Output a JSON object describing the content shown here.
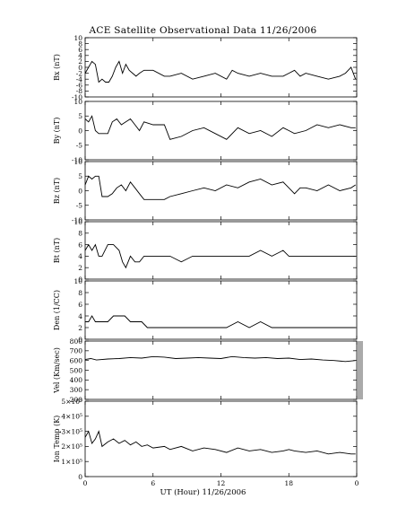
{
  "title": "ACE Satellite Observational Data   11/26/2006",
  "xlabel": "UT (Hour)   11/26/2006",
  "colors": {
    "trace": "#000000",
    "gap_bar": "#aaaaaa",
    "axis": "#000000"
  },
  "chart_data": [
    {
      "type": "line",
      "ylabel": "Bx (nT)",
      "ylim": [
        -10,
        10
      ],
      "yticks": [
        "-10",
        "-8",
        "-6",
        "-4",
        "-2",
        "0",
        "2",
        "4",
        "6",
        "8",
        "10"
      ],
      "xticks": [
        "0",
        "6",
        "12",
        "18",
        "0"
      ],
      "xlim": [
        0,
        24
      ],
      "series": [
        {
          "x": [
            0,
            0.3,
            0.6,
            0.9,
            1.2,
            1.5,
            1.8,
            2.1,
            2.4,
            2.7,
            3.0,
            3.3,
            3.6,
            3.9,
            4.2,
            4.5,
            4.8,
            5.2,
            6.0,
            7.0,
            7.5,
            8.5,
            9.5,
            10.5,
            11.5,
            12.5,
            13.0,
            13.5,
            14.5,
            15.5,
            16.5,
            17.5,
            18.0,
            18.5,
            19.0,
            19.5,
            20.5,
            21.5,
            22.5,
            23.0,
            23.5,
            23.9
          ],
          "y": [
            -2,
            0,
            2,
            1,
            -5,
            -4,
            -5,
            -5,
            -3,
            0,
            2,
            -2,
            1,
            -1,
            -2,
            -3,
            -2,
            -1,
            -1,
            -3,
            -3,
            -2,
            -4,
            -3,
            -2,
            -4,
            -1,
            -2,
            -3,
            -2,
            -3,
            -3,
            -2,
            -1,
            -3,
            -2,
            -3,
            -4,
            -3,
            -2,
            0,
            -4
          ]
        }
      ]
    },
    {
      "type": "line",
      "ylabel": "By (nT)",
      "ylim": [
        -10,
        10
      ],
      "yticks": [
        "-10",
        "-5",
        "0",
        "5",
        "10"
      ],
      "xticks": [
        "0",
        "6",
        "12",
        "18",
        "0"
      ],
      "xlim": [
        0,
        24
      ],
      "series": [
        {
          "x": [
            0,
            0.3,
            0.6,
            0.9,
            1.2,
            1.5,
            2.0,
            2.4,
            2.8,
            3.2,
            3.6,
            4.0,
            4.4,
            4.8,
            5.2,
            6.0,
            7.0,
            7.5,
            8.5,
            9.5,
            10.5,
            11.5,
            12.5,
            13.5,
            14.5,
            15.5,
            16.5,
            17.5,
            18.0,
            18.5,
            19.5,
            20.5,
            21.5,
            22.5,
            23.5,
            23.9
          ],
          "y": [
            4,
            3,
            5,
            0,
            -1,
            -1,
            -1,
            3,
            4,
            2,
            3,
            4,
            2,
            0,
            3,
            2,
            2,
            -3,
            -2,
            0,
            1,
            -1,
            -3,
            1,
            -1,
            0,
            -2,
            1,
            0,
            -1,
            0,
            2,
            1,
            2,
            1,
            1
          ]
        }
      ]
    },
    {
      "type": "line",
      "ylabel": "Bz (nT)",
      "ylim": [
        -10,
        10
      ],
      "yticks": [
        "-10",
        "-5",
        "0",
        "5",
        "10"
      ],
      "xticks": [
        "0",
        "6",
        "12",
        "18",
        "0"
      ],
      "xlim": [
        0,
        24
      ],
      "series": [
        {
          "x": [
            0,
            0.3,
            0.6,
            0.9,
            1.2,
            1.5,
            2.0,
            2.4,
            2.8,
            3.2,
            3.6,
            4.0,
            4.4,
            4.8,
            5.2,
            6.0,
            7.0,
            7.5,
            8.5,
            9.5,
            10.5,
            11.5,
            12.5,
            13.5,
            14.5,
            15.5,
            16.5,
            17.5,
            18.0,
            18.5,
            19.0,
            19.5,
            20.5,
            21.5,
            22.5,
            23.5,
            23.9
          ],
          "y": [
            2,
            5,
            4,
            5,
            5,
            -2,
            -2,
            -1,
            1,
            2,
            0,
            3,
            1,
            -1,
            -3,
            -3,
            -3,
            -2,
            -1,
            0,
            1,
            0,
            2,
            1,
            3,
            4,
            2,
            3,
            1,
            -1,
            1,
            1,
            0,
            2,
            0,
            1,
            2
          ]
        }
      ]
    },
    {
      "type": "line",
      "ylabel": "Bt (nT)",
      "ylim": [
        0,
        10
      ],
      "yticks": [
        "0",
        "2",
        "4",
        "6",
        "8",
        "10"
      ],
      "xticks": [
        "0",
        "6",
        "12",
        "18",
        "0"
      ],
      "xlim": [
        0,
        24
      ],
      "series": [
        {
          "x": [
            0,
            0.3,
            0.6,
            0.9,
            1.2,
            1.5,
            2.0,
            2.5,
            3.0,
            3.3,
            3.6,
            4.0,
            4.4,
            4.8,
            5.2,
            6.0,
            7.0,
            7.5,
            8.5,
            9.5,
            10.5,
            11.5,
            12.5,
            13.5,
            14.5,
            15.5,
            16.5,
            17.5,
            18.0,
            18.5,
            19.5,
            20.5,
            21.5,
            22.5,
            23.5,
            23.9
          ],
          "y": [
            5,
            6,
            5,
            6,
            4,
            4,
            6,
            6,
            5,
            3,
            2,
            4,
            3,
            3,
            4,
            4,
            4,
            4,
            3,
            4,
            4,
            4,
            4,
            4,
            4,
            5,
            4,
            5,
            4,
            4,
            4,
            4,
            4,
            4,
            4,
            4
          ]
        }
      ]
    },
    {
      "type": "line",
      "ylabel": "Den (1/CC)",
      "ylim": [
        0,
        10
      ],
      "yticks": [
        "0",
        "2",
        "4",
        "6",
        "8",
        "10"
      ],
      "xticks": [
        "0",
        "6",
        "12",
        "18",
        "0"
      ],
      "xlim": [
        0,
        24
      ],
      "series": [
        {
          "x": [
            0,
            0.3,
            0.6,
            0.9,
            1.2,
            1.5,
            2.0,
            2.5,
            3.0,
            3.5,
            4.0,
            4.5,
            5.0,
            5.5,
            6.0,
            7.0,
            7.5,
            8.5,
            9.5,
            10.5,
            11.5,
            12.5,
            13.5,
            14.5,
            15.5,
            16.5,
            17.5,
            18.0,
            18.5,
            19.5,
            20.5,
            21.5,
            22.5,
            23.5,
            23.9
          ],
          "y": [
            3,
            3,
            4,
            3,
            3,
            3,
            3,
            4,
            4,
            4,
            3,
            3,
            3,
            2,
            2,
            2,
            2,
            2,
            2,
            2,
            2,
            2,
            3,
            2,
            3,
            2,
            2,
            2,
            2,
            2,
            2,
            2,
            2,
            2,
            2
          ]
        }
      ]
    },
    {
      "type": "line",
      "ylabel": "Vel (Km/sec)",
      "ylim": [
        200,
        800
      ],
      "yticks": [
        "200",
        "300",
        "400",
        "500",
        "600",
        "700",
        "800"
      ],
      "xticks": [
        "0",
        "6",
        "12",
        "18",
        "0"
      ],
      "xlim": [
        0,
        24
      ],
      "series": [
        {
          "x": [
            0,
            0.5,
            1.0,
            2.0,
            3.0,
            4.0,
            5.0,
            6.0,
            7.0,
            8.0,
            9.0,
            10.0,
            11.0,
            12.0,
            13.0,
            14.0,
            15.0,
            16.0,
            17.0,
            18.0,
            19.0,
            20.0,
            21.0,
            22.0,
            23.0,
            23.9
          ],
          "y": [
            610,
            620,
            605,
            615,
            620,
            630,
            625,
            640,
            635,
            620,
            625,
            630,
            625,
            620,
            640,
            630,
            625,
            630,
            620,
            625,
            610,
            615,
            605,
            600,
            590,
            600
          ]
        }
      ]
    },
    {
      "type": "line",
      "ylabel": "Ion Temp (K)",
      "ylim": [
        0,
        500000
      ],
      "yticks": [
        "0",
        "1×10⁵",
        "2×10⁵",
        "3×10⁵",
        "4×10⁵",
        "5×10⁵"
      ],
      "xticks": [
        "0",
        "6",
        "12",
        "18",
        "0"
      ],
      "xlim": [
        0,
        24
      ],
      "series": [
        {
          "x": [
            0,
            0.3,
            0.6,
            0.9,
            1.2,
            1.5,
            2.0,
            2.5,
            3.0,
            3.5,
            4.0,
            4.5,
            5.0,
            5.5,
            6.0,
            7.0,
            7.5,
            8.5,
            9.5,
            10.5,
            11.5,
            12.5,
            13.5,
            14.5,
            15.5,
            16.5,
            17.5,
            18.0,
            18.5,
            19.5,
            20.5,
            21.5,
            22.5,
            23.5,
            23.9
          ],
          "y": [
            260000,
            300000,
            220000,
            250000,
            300000,
            200000,
            230000,
            250000,
            220000,
            240000,
            210000,
            230000,
            200000,
            210000,
            190000,
            200000,
            180000,
            200000,
            170000,
            190000,
            180000,
            160000,
            190000,
            170000,
            180000,
            160000,
            170000,
            180000,
            170000,
            160000,
            170000,
            150000,
            160000,
            150000,
            150000
          ]
        }
      ]
    }
  ]
}
